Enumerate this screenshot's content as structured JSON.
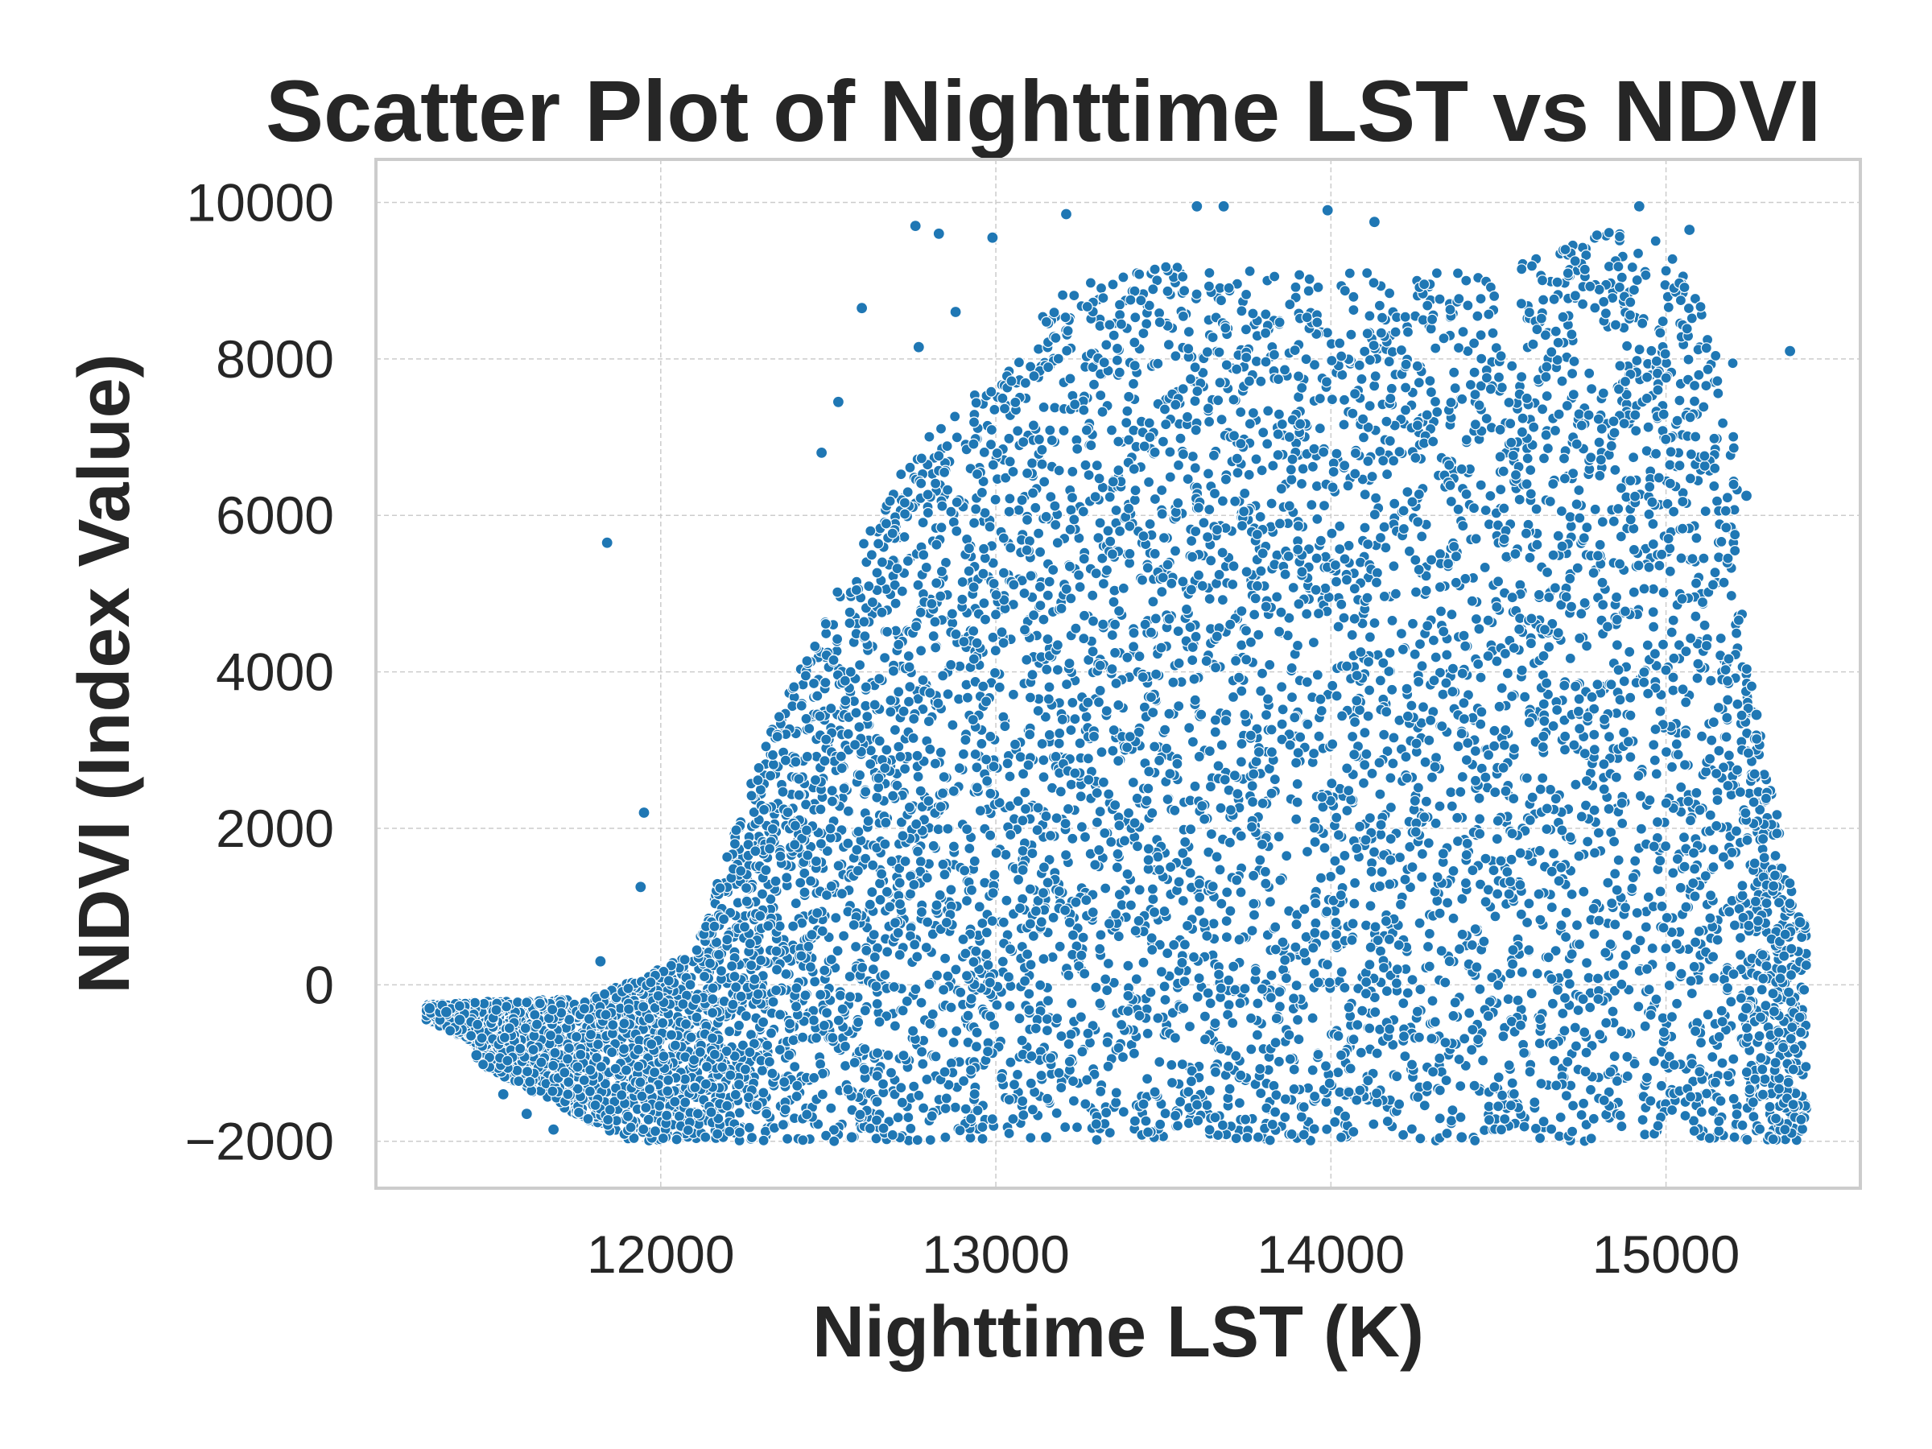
{
  "chart_data": {
    "type": "scatter",
    "title": "Scatter Plot of Nighttime LST vs NDVI",
    "xlabel": "Nighttime LST (K)",
    "ylabel": "NDVI (Index Value)",
    "xlim": [
      11150,
      15580
    ],
    "ylim": [
      -2600,
      10550
    ],
    "xticks": [
      12000,
      13000,
      14000,
      15000
    ],
    "yticks": [
      -2000,
      0,
      2000,
      4000,
      6000,
      8000,
      10000
    ],
    "xtick_labels": [
      "12000",
      "13000",
      "14000",
      "15000"
    ],
    "ytick_labels": [
      "−2000",
      "0",
      "2000",
      "4000",
      "6000",
      "8000",
      "10000"
    ],
    "grid": true,
    "marker_color": "#1f77b4",
    "marker_edge_color": "#ffffff",
    "density_envelope": {
      "description_points_upper": [
        [
          11300,
          -250
        ],
        [
          11800,
          -150
        ],
        [
          12100,
          400
        ],
        [
          12300,
          3000
        ],
        [
          12500,
          4800
        ],
        [
          12750,
          6800
        ],
        [
          13000,
          7800
        ],
        [
          13200,
          8900
        ],
        [
          13500,
          9200
        ],
        [
          14000,
          9100
        ],
        [
          14500,
          9100
        ],
        [
          14800,
          9700
        ],
        [
          15000,
          9500
        ],
        [
          15200,
          8000
        ],
        [
          15230,
          4500
        ],
        [
          15300,
          2800
        ],
        [
          15400,
          800
        ]
      ],
      "lower": -2000
    },
    "points": [
      {
        "x": 11840,
        "y": 5650
      },
      {
        "x": 11950,
        "y": 2200
      },
      {
        "x": 11940,
        "y": 1250
      },
      {
        "x": 11820,
        "y": 300
      },
      {
        "x": 12600,
        "y": 8650
      },
      {
        "x": 12530,
        "y": 7450
      },
      {
        "x": 12480,
        "y": 6800
      },
      {
        "x": 12760,
        "y": 9700
      },
      {
        "x": 12830,
        "y": 9600
      },
      {
        "x": 12990,
        "y": 9550
      },
      {
        "x": 12770,
        "y": 8150
      },
      {
        "x": 12880,
        "y": 8600
      },
      {
        "x": 13210,
        "y": 9850
      },
      {
        "x": 13600,
        "y": 9950
      },
      {
        "x": 13680,
        "y": 9950
      },
      {
        "x": 13990,
        "y": 9900
      },
      {
        "x": 14130,
        "y": 9750
      },
      {
        "x": 14920,
        "y": 9950
      },
      {
        "x": 15070,
        "y": 9650
      },
      {
        "x": 15370,
        "y": 8100
      },
      {
        "x": 15240,
        "y": 6250
      },
      {
        "x": 15270,
        "y": 3450
      },
      {
        "x": 15240,
        "y": -300
      },
      {
        "x": 15400,
        "y": 800
      },
      {
        "x": 11310,
        "y": -300
      },
      {
        "x": 11360,
        "y": -350
      },
      {
        "x": 11400,
        "y": -450
      },
      {
        "x": 11450,
        "y": -900
      },
      {
        "x": 11530,
        "y": -1400
      },
      {
        "x": 11600,
        "y": -1650
      },
      {
        "x": 11680,
        "y": -1850
      },
      {
        "x": 12570,
        "y": -1950
      },
      {
        "x": 13150,
        "y": -1950
      },
      {
        "x": 14390,
        "y": -1950
      }
    ]
  }
}
